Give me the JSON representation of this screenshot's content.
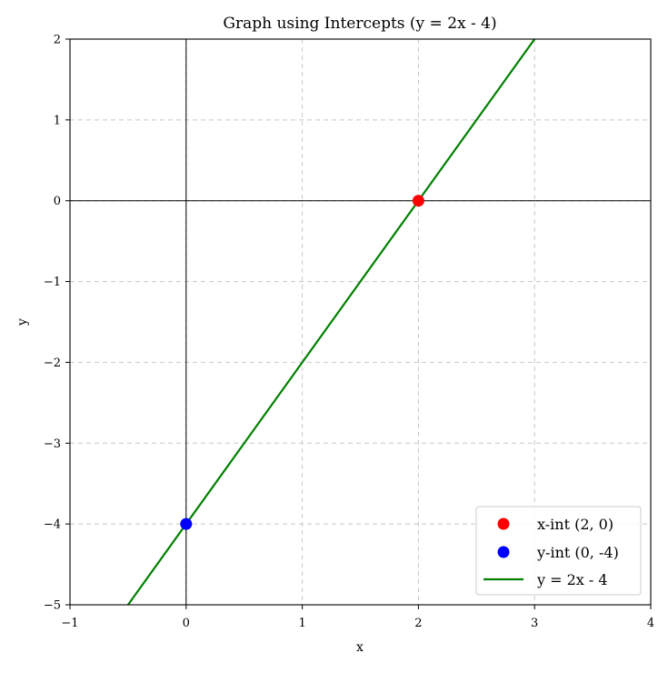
{
  "chart_data": {
    "type": "line",
    "title": "Graph using Intercepts (y = 2x - 4)",
    "xlabel": "x",
    "ylabel": "y",
    "xlim": [
      -1,
      4
    ],
    "ylim": [
      -5,
      2
    ],
    "xticks": [
      -1,
      0,
      1,
      2,
      3,
      4
    ],
    "yticks": [
      -5,
      -4,
      -3,
      -2,
      -1,
      0,
      1,
      2
    ],
    "xtick_labels": [
      "−1",
      "0",
      "1",
      "2",
      "3",
      "4"
    ],
    "ytick_labels": [
      "−5",
      "−4",
      "−3",
      "−2",
      "−1",
      "0",
      "1",
      "2"
    ],
    "grid": true,
    "grid_style": "dashed",
    "legend_position": "bottom-right",
    "reference_lines": {
      "x": 0,
      "y": 0
    },
    "line": {
      "name": "y = 2x - 4",
      "color": "#008000",
      "slope": 2,
      "intercept": -4,
      "x_range": [
        -0.5,
        3
      ]
    },
    "points": [
      {
        "name": "x-int (2, 0)",
        "x": 2,
        "y": 0,
        "color": "#ff0000"
      },
      {
        "name": "y-int (0, -4)",
        "x": 0,
        "y": -4,
        "color": "#0000ff"
      }
    ],
    "legend": [
      {
        "label": "x-int (2, 0)",
        "kind": "marker",
        "color": "#ff0000"
      },
      {
        "label": "y-int (0, -4)",
        "kind": "marker",
        "color": "#0000ff"
      },
      {
        "label": "y = 2x - 4",
        "kind": "line",
        "color": "#008000"
      }
    ]
  }
}
